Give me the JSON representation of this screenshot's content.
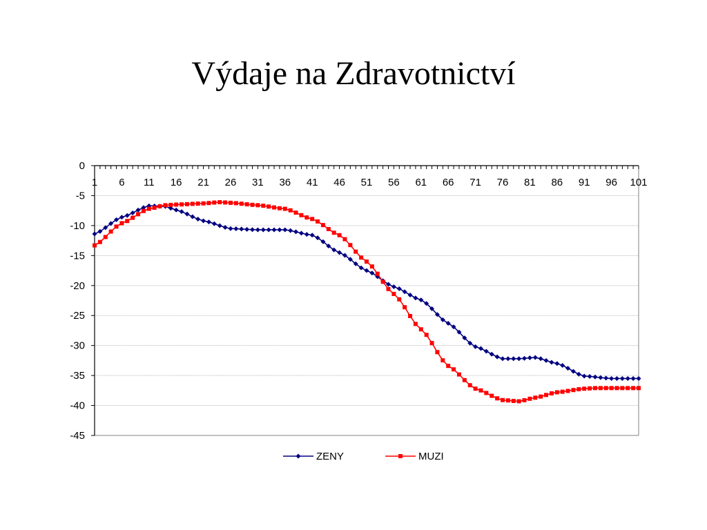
{
  "title": "Výdaje na Zdravotnictví",
  "chart_data": {
    "type": "line",
    "title": "Výdaje na Zdravotnictví",
    "xlabel": "",
    "ylabel": "",
    "ylim": [
      -45,
      0
    ],
    "xlim": [
      1,
      101
    ],
    "yticks": [
      0,
      -5,
      -10,
      -15,
      -20,
      -25,
      -30,
      -35,
      -40,
      -45
    ],
    "xticks": [
      1,
      6,
      11,
      16,
      21,
      26,
      31,
      36,
      41,
      46,
      51,
      56,
      61,
      66,
      71,
      76,
      81,
      86,
      91,
      96,
      101
    ],
    "grid": "horizontal",
    "legend_position": "bottom",
    "series": [
      {
        "name": "ZENY",
        "color": "#000080",
        "marker": "diamond",
        "x": [
          1,
          6,
          11,
          14,
          16,
          21,
          26,
          31,
          36,
          41,
          46,
          51,
          56,
          61,
          66,
          71,
          76,
          79,
          82,
          86,
          91,
          96,
          101
        ],
        "values": [
          -11.4,
          -8.6,
          -6.7,
          -6.8,
          -7.4,
          -9.2,
          -10.5,
          -10.7,
          -10.7,
          -11.6,
          -14.5,
          -17.5,
          -20.2,
          -22.4,
          -26.3,
          -30.2,
          -32.2,
          -32.2,
          -32.0,
          -33.0,
          -35.1,
          -35.5,
          -35.5
        ]
      },
      {
        "name": "MUZI",
        "color": "#ff0000",
        "marker": "square",
        "x": [
          1,
          6,
          11,
          14,
          16,
          21,
          24,
          26,
          31,
          36,
          41,
          46,
          51,
          56,
          61,
          66,
          71,
          76,
          79,
          82,
          86,
          91,
          93,
          101
        ],
        "values": [
          -13.3,
          -9.6,
          -7.2,
          -6.6,
          -6.5,
          -6.3,
          -6.1,
          -6.2,
          -6.6,
          -7.2,
          -8.9,
          -11.6,
          -16.0,
          -21.4,
          -27.3,
          -33.4,
          -37.2,
          -39.1,
          -39.3,
          -38.7,
          -37.8,
          -37.2,
          -37.1,
          -37.1
        ]
      }
    ]
  }
}
